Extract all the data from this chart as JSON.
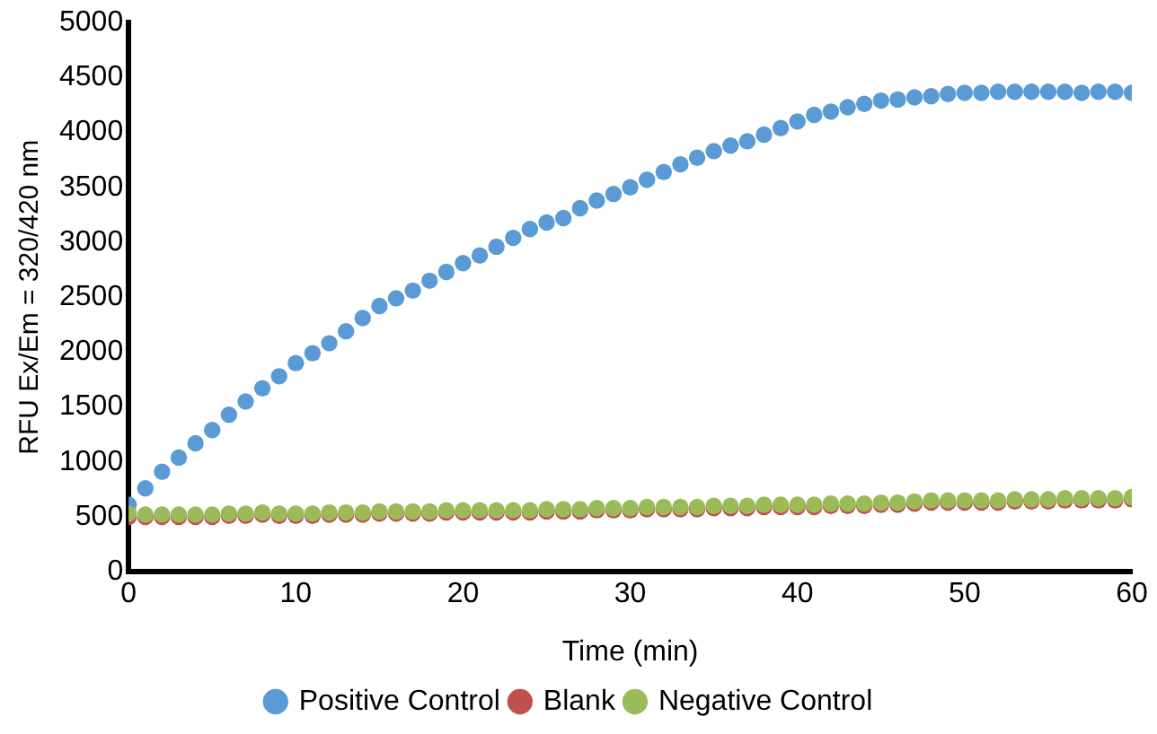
{
  "chart_data": {
    "type": "scatter",
    "xlabel": "Time (min)",
    "ylabel": "RFU Ex/Em = 320/420 nm",
    "x": [
      0,
      1,
      2,
      3,
      4,
      5,
      6,
      7,
      8,
      9,
      10,
      11,
      12,
      13,
      14,
      15,
      16,
      17,
      18,
      19,
      20,
      21,
      22,
      23,
      24,
      25,
      26,
      27,
      28,
      29,
      30,
      31,
      32,
      33,
      34,
      35,
      36,
      37,
      38,
      39,
      40,
      41,
      42,
      43,
      44,
      45,
      46,
      47,
      48,
      49,
      50,
      51,
      52,
      53,
      54,
      55,
      56,
      57,
      58,
      59,
      60
    ],
    "series": [
      {
        "name": "Positive Control",
        "color": "#5b9bd5",
        "values": [
          610,
          760,
          910,
          1040,
          1170,
          1290,
          1430,
          1550,
          1670,
          1780,
          1900,
          1990,
          2080,
          2190,
          2310,
          2420,
          2490,
          2560,
          2650,
          2730,
          2810,
          2880,
          2960,
          3040,
          3120,
          3180,
          3220,
          3310,
          3380,
          3440,
          3500,
          3570,
          3640,
          3710,
          3770,
          3830,
          3880,
          3920,
          3980,
          4040,
          4100,
          4160,
          4190,
          4230,
          4260,
          4290,
          4300,
          4320,
          4330,
          4350,
          4360,
          4360,
          4370,
          4370,
          4370,
          4370,
          4370,
          4360,
          4370,
          4370,
          4360
        ]
      },
      {
        "name": "Blank",
        "color": "#c0504d",
        "values": [
          500,
          500,
          500,
          500,
          500,
          500,
          510,
          510,
          520,
          510,
          510,
          510,
          520,
          520,
          520,
          530,
          530,
          530,
          530,
          540,
          540,
          540,
          540,
          540,
          540,
          550,
          550,
          550,
          560,
          560,
          560,
          570,
          570,
          570,
          570,
          580,
          580,
          580,
          590,
          590,
          590,
          590,
          600,
          600,
          600,
          610,
          610,
          620,
          630,
          630,
          630,
          630,
          630,
          640,
          640,
          640,
          650,
          650,
          650,
          650,
          660
        ]
      },
      {
        "name": "Negative Control",
        "color": "#9bbb59",
        "values": [
          530,
          520,
          520,
          520,
          520,
          520,
          530,
          530,
          540,
          530,
          530,
          530,
          540,
          540,
          540,
          550,
          550,
          550,
          550,
          560,
          560,
          560,
          560,
          560,
          560,
          570,
          570,
          570,
          580,
          580,
          580,
          590,
          590,
          590,
          590,
          600,
          600,
          600,
          610,
          610,
          610,
          610,
          620,
          620,
          620,
          630,
          630,
          640,
          650,
          650,
          650,
          650,
          650,
          660,
          660,
          660,
          670,
          670,
          670,
          670,
          680
        ]
      }
    ],
    "xlim": [
      0,
      60
    ],
    "xticks": [
      0,
      10,
      20,
      30,
      40,
      50,
      60
    ],
    "ylim": [
      0,
      5000
    ],
    "yticks": [
      0,
      500,
      1000,
      1500,
      2000,
      2500,
      3000,
      3500,
      4000,
      4500,
      5000
    ],
    "grid": false,
    "legend": "bottom",
    "marker": "circle"
  }
}
